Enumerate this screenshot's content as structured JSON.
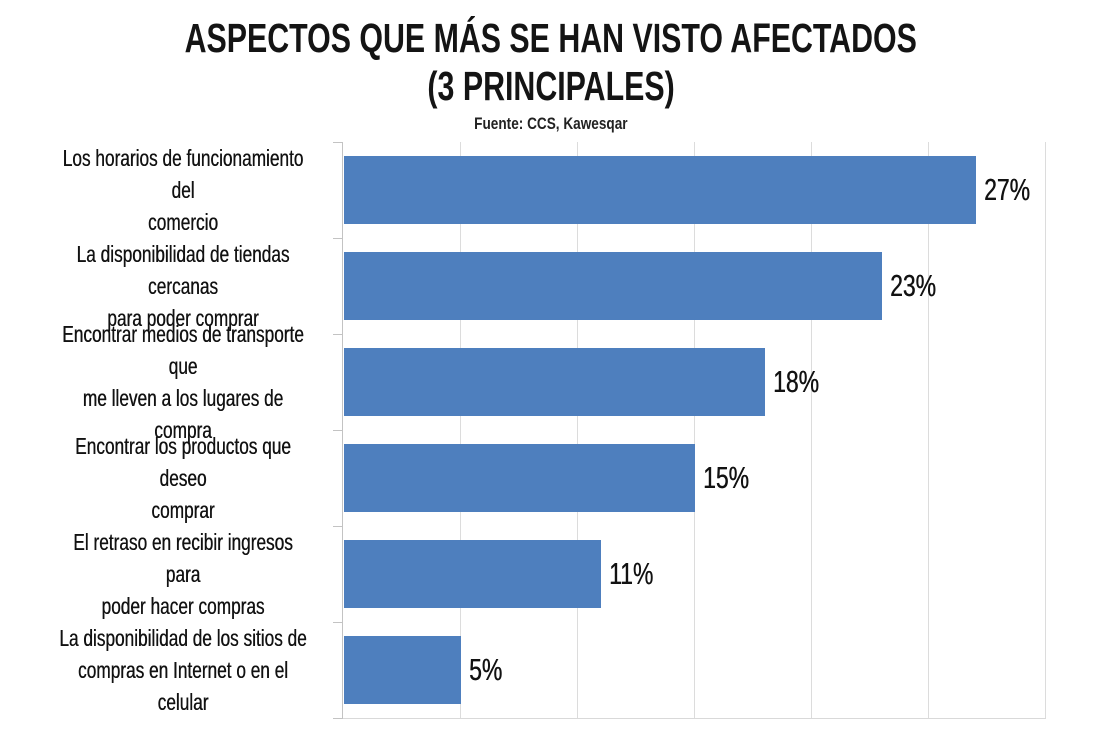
{
  "title": {
    "line1": "ASPECTOS QUE MÁS SE HAN VISTO AFECTADOS",
    "line2": "(3 PRINCIPALES)"
  },
  "subtitle": "Fuente: CCS, Kawesqar",
  "colors": {
    "bar": "#4e7fbe",
    "gridline": "#dcdcdc",
    "axis": "#c3c3c3",
    "text": "#121212"
  },
  "chart_data": {
    "type": "bar",
    "orientation": "horizontal",
    "title": "ASPECTOS QUE MÁS SE HAN VISTO AFECTADOS (3 PRINCIPALES)",
    "subtitle": "Fuente: CCS, Kawesqar",
    "categories": [
      "Los horarios de funcionamiento del comercio",
      "La disponibilidad de tiendas cercanas para poder comprar",
      "Encontrar medios de transporte que me lleven a los lugares de compra",
      "Encontrar los productos que deseo comprar",
      "El retraso en recibir ingresos para poder hacer compras",
      "La disponibilidad de los sitios de compras en Internet o en el celular"
    ],
    "category_lines": [
      [
        "Los horarios de funcionamiento del",
        "comercio"
      ],
      [
        "La disponibilidad de tiendas cercanas",
        "para poder comprar"
      ],
      [
        "Encontrar medios de transporte que",
        "me lleven a los lugares de compra"
      ],
      [
        "Encontrar los productos que deseo",
        "comprar"
      ],
      [
        "El retraso en recibir ingresos para",
        "poder hacer compras"
      ],
      [
        "La disponibilidad de los sitios de",
        "compras en Internet o en el celular"
      ]
    ],
    "values": [
      27,
      23,
      18,
      15,
      11,
      5
    ],
    "value_labels": [
      "27%",
      "23%",
      "18%",
      "15%",
      "11%",
      "5%"
    ],
    "xlabel": "",
    "ylabel": "",
    "xlim": [
      0,
      30
    ],
    "gridline_step": 5,
    "grid": true,
    "legend": false
  }
}
